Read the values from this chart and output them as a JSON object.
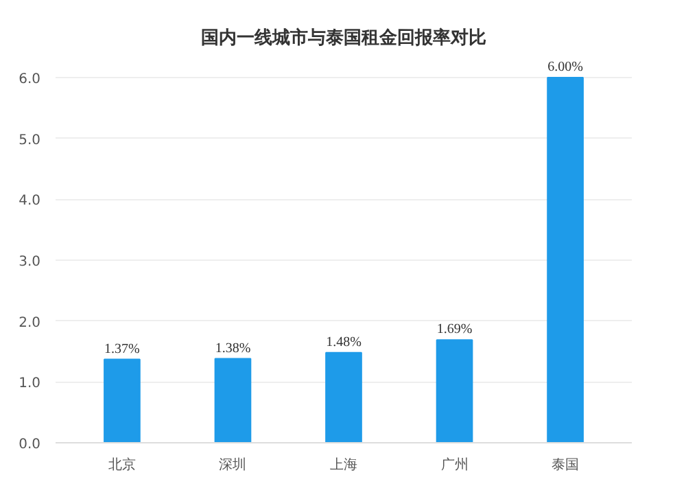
{
  "chart_data": {
    "type": "bar",
    "title": "国内一线城市与泰国租金回报率对比",
    "categories": [
      "北京",
      "深圳",
      "上海",
      "广州",
      "泰国"
    ],
    "values": [
      1.37,
      1.38,
      1.48,
      1.69,
      6.0
    ],
    "value_labels": [
      "1.37%",
      "1.38%",
      "1.48%",
      "1.69%",
      "6.00%"
    ],
    "color": "#1e9be9",
    "ylim": [
      0,
      6
    ],
    "yticks": [
      {
        "value": 0,
        "label": "0.0"
      },
      {
        "value": 1,
        "label": "1.0"
      },
      {
        "value": 2,
        "label": "2.0"
      },
      {
        "value": 3,
        "label": "3.0"
      },
      {
        "value": 4,
        "label": "4.0"
      },
      {
        "value": 5,
        "label": "5.0"
      },
      {
        "value": 6,
        "label": "6.0"
      }
    ],
    "grid": "y"
  }
}
